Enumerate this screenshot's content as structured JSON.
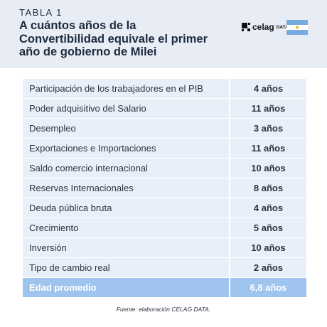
{
  "header": {
    "kicker": "TABLA 1",
    "title_lines": [
      "A cuántos años de la",
      "Convertibilidad equivale el primer",
      "año de gobierno de Milei"
    ],
    "logo": {
      "brand": "celag",
      "sub": "DATA"
    }
  },
  "table": {
    "rows": [
      [
        "Participación de los trabajadores en el PIB",
        "4 años"
      ],
      [
        "Poder adquisitivo del Salario",
        "11 años"
      ],
      [
        "Desempleo",
        "3 años"
      ],
      [
        "Exportaciones e Importaciones",
        "11 años"
      ],
      [
        "Saldo comercio internacional",
        "10 años"
      ],
      [
        "Reservas Internacionales",
        "8 años"
      ],
      [
        "Deuda pública bruta",
        "4 años"
      ],
      [
        "Crecimiento",
        "5 años"
      ],
      [
        "Inversión",
        "10 años"
      ],
      [
        "Tipo de cambio real",
        "2 años"
      ]
    ],
    "total": [
      "Edad promedio",
      "6,8 años"
    ]
  },
  "source": "Fuente: elaboración CELAG DATA."
}
